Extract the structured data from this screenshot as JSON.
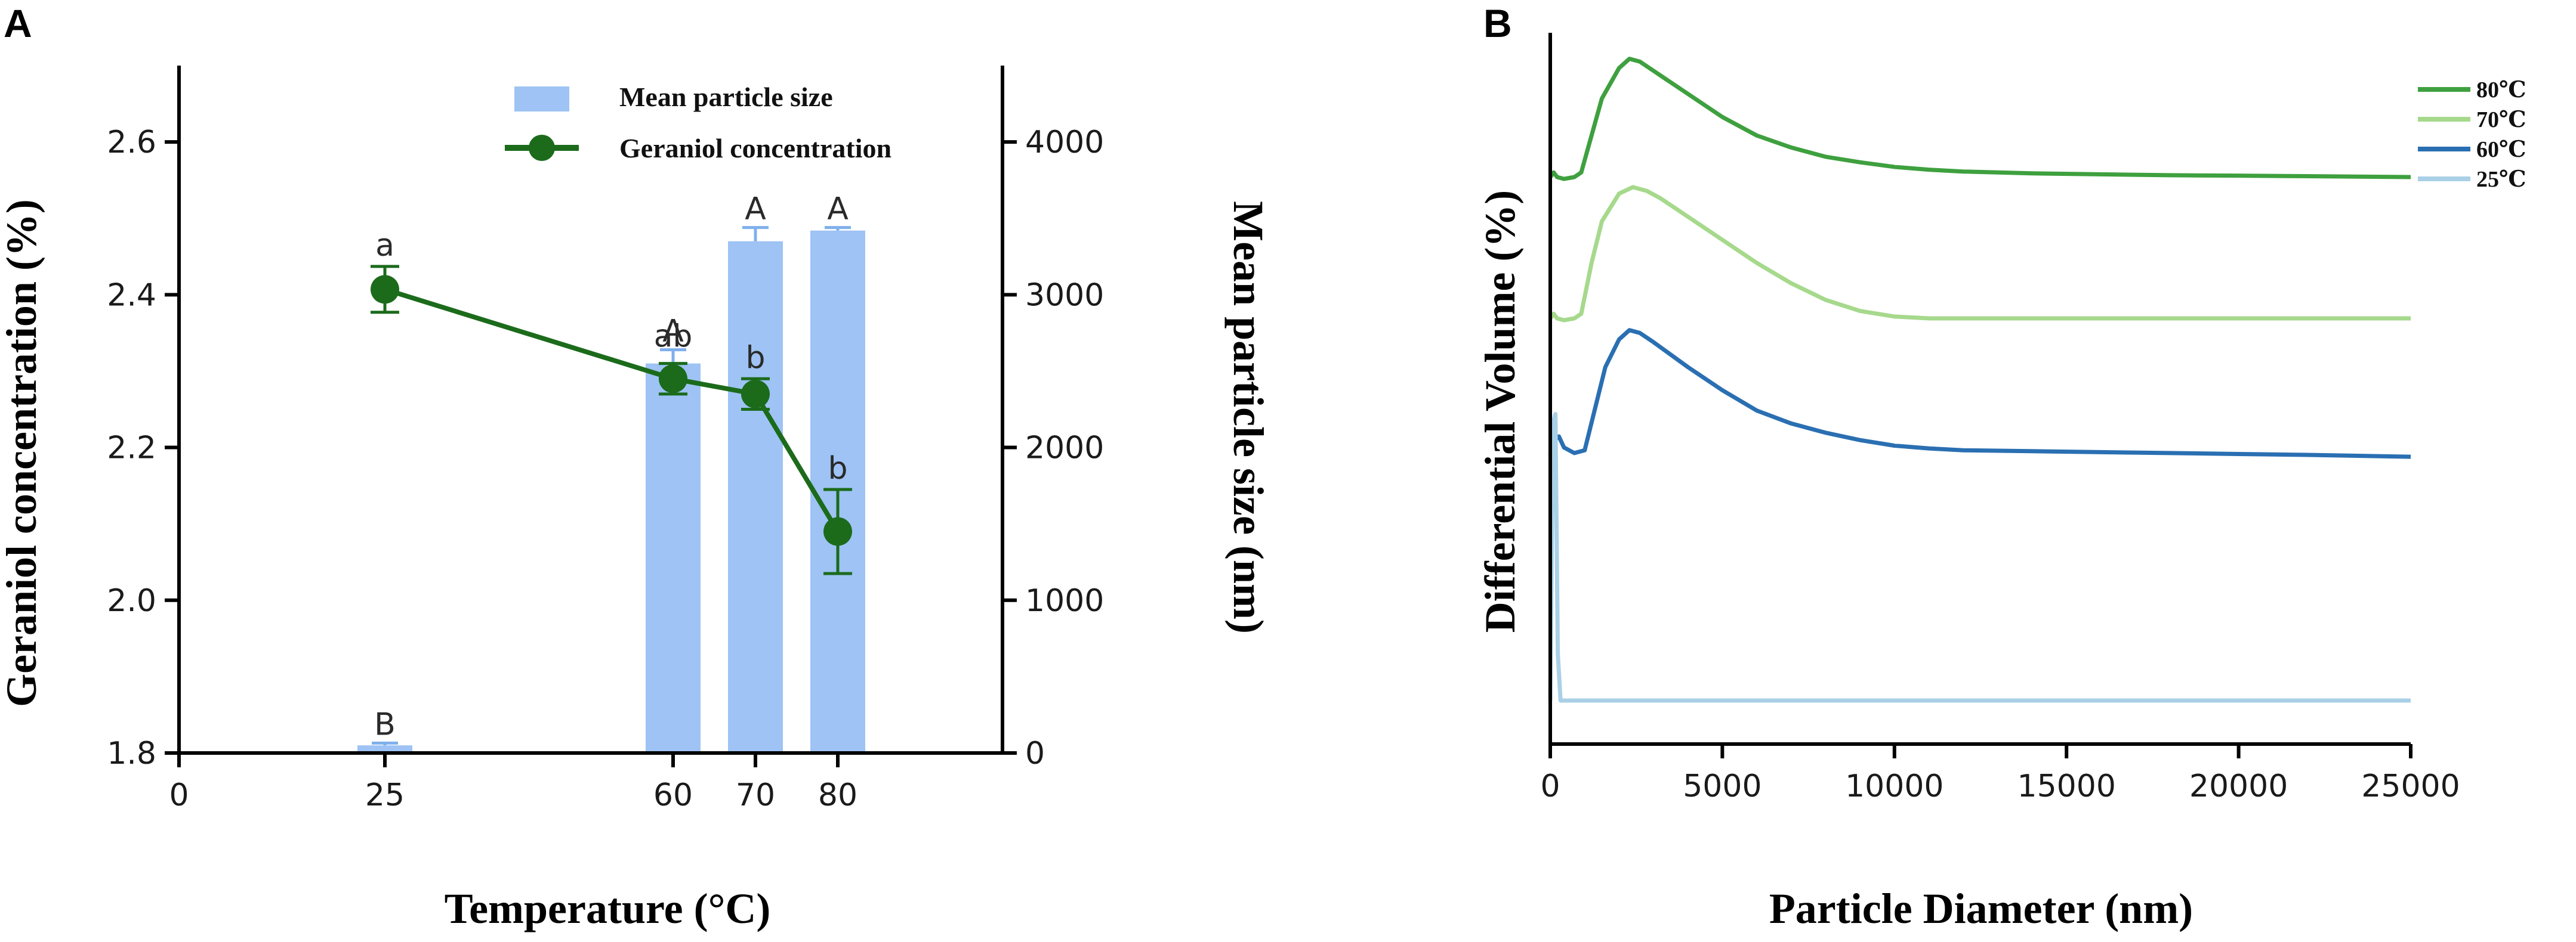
{
  "figure": {
    "panel_a_letter": "A",
    "panel_b_letter": "B"
  },
  "chart_data": [
    {
      "type": "bar",
      "panel": "A",
      "title": "",
      "xlabel": "Temperature (°C)",
      "ylabel": "Geraniol concentration (%)",
      "y2label": "Mean particle size (nm)",
      "xlim": [
        0,
        100
      ],
      "ylim": [
        1.8,
        2.7
      ],
      "y2lim": [
        0,
        4500
      ],
      "x_ticks": [
        0,
        25,
        60,
        70,
        80
      ],
      "x_tick_labels": [
        "0",
        "25",
        "60",
        "70",
        "80"
      ],
      "y_ticks": [
        1.8,
        2.0,
        2.2,
        2.4,
        2.6
      ],
      "y_tick_labels": [
        "1.8",
        "2.0",
        "2.2",
        "2.4",
        "2.6"
      ],
      "y2_ticks": [
        0,
        1000,
        2000,
        3000,
        4000
      ],
      "y2_tick_labels": [
        "0",
        "1000",
        "2000",
        "3000",
        "4000"
      ],
      "colors": {
        "bar": "#9ec3f4",
        "bar_error": "#7fb0ec",
        "line": "#1b6b1b",
        "axis": "#000000"
      },
      "series": [
        {
          "name": "Mean particle size",
          "kind": "bar",
          "axis": "right",
          "x": [
            25,
            60,
            70,
            80
          ],
          "values": [
            50,
            2550,
            3350,
            3420
          ],
          "errors": [
            15,
            90,
            90,
            20
          ],
          "labels": [
            "B",
            "A",
            "A",
            "A"
          ]
        },
        {
          "name": "Geraniol concentration",
          "kind": "line",
          "axis": "left",
          "x": [
            25,
            60,
            70,
            80
          ],
          "values": [
            2.407,
            2.29,
            2.27,
            2.09
          ],
          "errors": [
            0.03,
            0.02,
            0.02,
            0.055
          ],
          "labels": [
            "a",
            "ab",
            "b",
            "b"
          ]
        }
      ],
      "legend": {
        "position": "top-right",
        "entries": [
          "Mean particle size",
          "Geraniol concentration"
        ]
      }
    },
    {
      "type": "line",
      "panel": "B",
      "title": "",
      "xlabel": "Particle Diameter (nm)",
      "ylabel": "Differential Volume (%)",
      "xlim": [
        0,
        25000
      ],
      "x_ticks": [
        0,
        5000,
        10000,
        15000,
        20000,
        25000
      ],
      "x_tick_labels": [
        "0",
        "5000",
        "10000",
        "15000",
        "20000",
        "25000"
      ],
      "y_ticks_shown": false,
      "series_offsets_note": "curves are vertically offset (stacked) for display",
      "series": [
        {
          "name": "80℃",
          "color": "#3ea03e",
          "offset": 3,
          "x": [
            0,
            100,
            200,
            400,
            700,
            900,
            1200,
            1500,
            2000,
            2300,
            2600,
            3000,
            4000,
            5000,
            6000,
            7000,
            8000,
            9000,
            10000,
            11000,
            12000,
            14000,
            16000,
            18000,
            20000,
            22000,
            25000
          ],
          "values": [
            0.0,
            0.05,
            0.0,
            -0.02,
            0.0,
            0.05,
            0.45,
            0.85,
            1.18,
            1.28,
            1.25,
            1.15,
            0.9,
            0.65,
            0.45,
            0.32,
            0.22,
            0.16,
            0.11,
            0.08,
            0.06,
            0.04,
            0.03,
            0.02,
            0.015,
            0.01,
            0.0
          ]
        },
        {
          "name": "70℃",
          "color": "#a6d98c",
          "offset": 2,
          "x": [
            0,
            100,
            200,
            400,
            700,
            900,
            1200,
            1500,
            2000,
            2400,
            2800,
            3200,
            4000,
            5000,
            6000,
            7000,
            8000,
            9000,
            10000,
            11000,
            12000,
            14000,
            16000,
            18000,
            20000,
            22000,
            25000
          ],
          "values": [
            0.0,
            0.05,
            0.0,
            -0.02,
            0.0,
            0.05,
            0.6,
            1.05,
            1.35,
            1.42,
            1.38,
            1.3,
            1.1,
            0.85,
            0.6,
            0.38,
            0.2,
            0.08,
            0.02,
            0.0,
            0.0,
            0.0,
            0.0,
            0.0,
            0.0,
            0.0,
            0.0
          ]
        },
        {
          "name": "60℃",
          "color": "#2a6fb2",
          "offset": 1,
          "x": [
            0,
            100,
            250,
            400,
            700,
            1000,
            1300,
            1600,
            2000,
            2300,
            2600,
            3000,
            4000,
            5000,
            6000,
            7000,
            8000,
            9000,
            10000,
            11000,
            12000,
            14000,
            16000,
            18000,
            20000,
            22000,
            25000
          ],
          "values": [
            0.0,
            0.15,
            0.2,
            0.08,
            0.02,
            0.05,
            0.5,
            0.95,
            1.25,
            1.35,
            1.32,
            1.22,
            0.95,
            0.7,
            0.48,
            0.34,
            0.24,
            0.16,
            0.1,
            0.07,
            0.05,
            0.04,
            0.03,
            0.02,
            0.01,
            0.0,
            -0.02
          ]
        },
        {
          "name": "25℃",
          "color": "#a9d0e6",
          "offset": 0,
          "x": [
            0,
            80,
            150,
            220,
            300,
            400,
            1000,
            5000,
            10000,
            15000,
            20000,
            25000
          ],
          "values": [
            0.0,
            3.0,
            3.1,
            0.5,
            0.0,
            0.0,
            0.0,
            0.0,
            0.0,
            0.0,
            0.0,
            0.0
          ]
        }
      ],
      "legend": {
        "position": "top-right",
        "entries": [
          "80℃",
          "70℃",
          "60℃",
          "25℃"
        ]
      }
    }
  ]
}
